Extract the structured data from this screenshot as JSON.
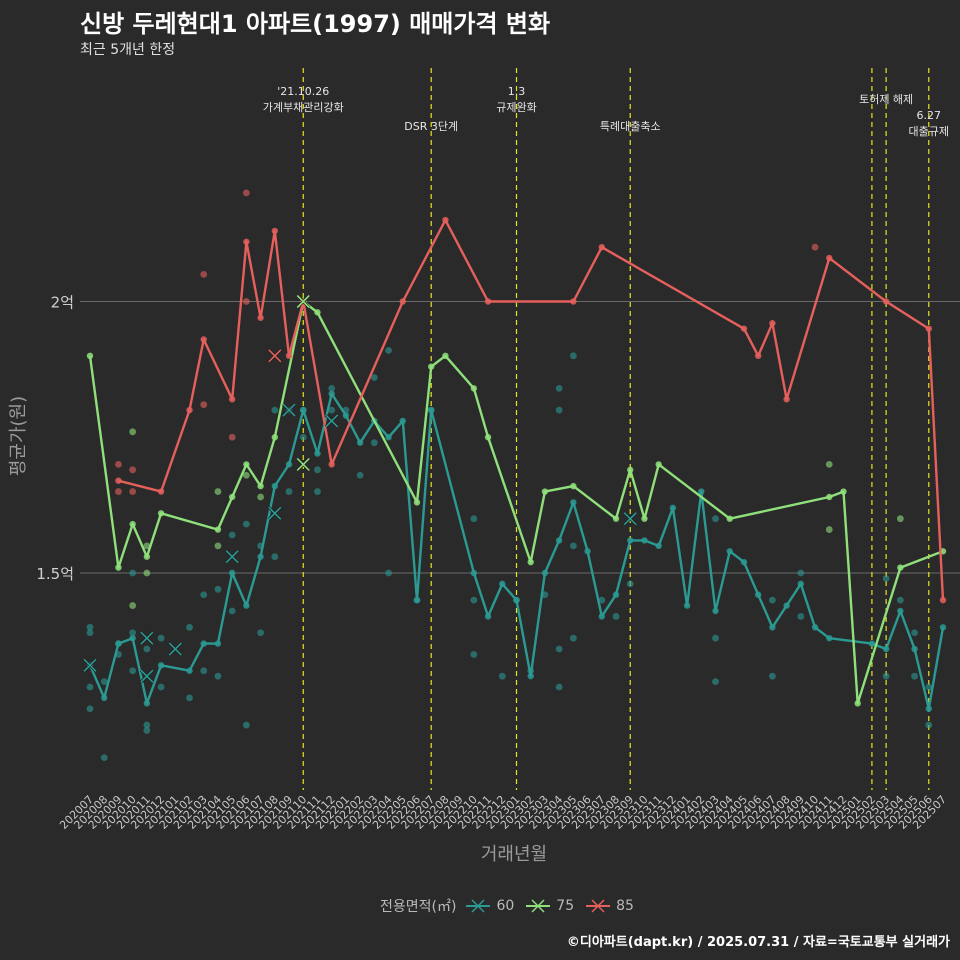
{
  "header": {
    "title": "신방 두레현대1 아파트(1997) 매매가격 변화",
    "subtitle": "최근 5개년 한정"
  },
  "caption": "©디아파트(dapt.kr) / 2025.07.31 / 자료=국토교통부 실거래가",
  "colors": {
    "s60": "#2a9a93",
    "s75": "#8fe07b",
    "s85": "#e5605c",
    "vline": "#e5e51f",
    "background": "#2b2a2b",
    "grid": "#6a6a6a"
  },
  "chart_data": {
    "type": "line",
    "xlabel": "거래년월",
    "ylabel": "평균가(원)",
    "legend_title": "전용면적(㎡)",
    "legend_position": "bottom",
    "categories": [
      "202007",
      "202008",
      "202009",
      "202010",
      "202011",
      "202012",
      "202101",
      "202102",
      "202103",
      "202104",
      "202105",
      "202106",
      "202107",
      "202108",
      "202109",
      "202110",
      "202111",
      "202112",
      "202201",
      "202202",
      "202203",
      "202204",
      "202205",
      "202206",
      "202207",
      "202208",
      "202209",
      "202210",
      "202211",
      "202212",
      "202301",
      "202302",
      "202303",
      "202304",
      "202305",
      "202306",
      "202307",
      "202308",
      "202309",
      "202310",
      "202311",
      "202312",
      "202401",
      "202402",
      "202403",
      "202404",
      "202405",
      "202406",
      "202407",
      "202408",
      "202409",
      "202410",
      "202411",
      "202412",
      "202501",
      "202502",
      "202503",
      "202504",
      "202505",
      "202506",
      "202507"
    ],
    "ylim": [
      1.1,
      2.2
    ],
    "y_ticks": [
      {
        "value": 1.5,
        "label": "1.5억"
      },
      {
        "value": 2.0,
        "label": "2억"
      }
    ],
    "series": [
      {
        "name": "60",
        "color_key": "s60",
        "values": [
          1.33,
          1.27,
          1.37,
          1.38,
          1.26,
          1.33,
          null,
          1.32,
          1.37,
          1.37,
          1.5,
          1.44,
          1.53,
          1.66,
          1.7,
          1.8,
          1.72,
          1.83,
          1.79,
          1.74,
          1.78,
          1.75,
          1.78,
          1.45,
          1.8,
          null,
          null,
          1.5,
          1.42,
          1.48,
          1.45,
          1.31,
          1.5,
          1.56,
          1.63,
          1.54,
          1.42,
          1.46,
          1.56,
          1.56,
          1.55,
          1.62,
          1.44,
          1.65,
          1.43,
          1.54,
          1.52,
          1.46,
          1.4,
          1.44,
          1.48,
          1.4,
          1.38,
          null,
          null,
          1.37,
          1.36,
          1.43,
          1.36,
          1.25,
          1.4
        ]
      },
      {
        "name": "75",
        "color_key": "s75",
        "values": [
          1.9,
          null,
          1.51,
          1.59,
          1.53,
          1.61,
          null,
          null,
          null,
          1.58,
          1.64,
          1.7,
          1.66,
          1.75,
          null,
          2.0,
          1.98,
          null,
          null,
          null,
          null,
          null,
          null,
          1.63,
          1.88,
          1.9,
          null,
          1.84,
          1.75,
          null,
          null,
          1.52,
          1.65,
          null,
          1.66,
          null,
          null,
          1.6,
          1.69,
          1.6,
          1.7,
          null,
          null,
          null,
          null,
          1.6,
          null,
          null,
          null,
          null,
          null,
          null,
          1.64,
          1.65,
          1.26,
          null,
          null,
          1.51,
          null,
          null,
          1.54
        ]
      },
      {
        "name": "85",
        "color_key": "s85",
        "values": [
          null,
          null,
          1.67,
          null,
          null,
          1.65,
          null,
          1.8,
          1.93,
          null,
          1.82,
          2.11,
          1.97,
          2.13,
          1.9,
          2.0,
          null,
          1.7,
          null,
          null,
          null,
          null,
          2.0,
          null,
          null,
          2.15,
          null,
          null,
          2.0,
          null,
          null,
          null,
          null,
          null,
          2.0,
          null,
          2.1,
          null,
          null,
          null,
          null,
          null,
          null,
          null,
          null,
          null,
          1.95,
          1.9,
          1.96,
          1.82,
          null,
          null,
          2.08,
          null,
          null,
          null,
          2.0,
          null,
          null,
          1.95,
          1.45
        ]
      }
    ],
    "points": [
      {
        "series": "60",
        "x": "202007",
        "y": 1.25
      },
      {
        "series": "60",
        "x": "202007",
        "y": 1.29
      },
      {
        "series": "60",
        "x": "202007",
        "y": 1.4
      },
      {
        "series": "60",
        "x": "202007",
        "y": 1.39
      },
      {
        "series": "60",
        "x": "202008",
        "y": 1.3
      },
      {
        "series": "60",
        "x": "202008",
        "y": 1.16
      },
      {
        "series": "60",
        "x": "202009",
        "y": 1.37
      },
      {
        "series": "60",
        "x": "202009",
        "y": 1.35
      },
      {
        "series": "60",
        "x": "202010",
        "y": 1.39
      },
      {
        "series": "60",
        "x": "202010",
        "y": 1.32
      },
      {
        "series": "60",
        "x": "202010",
        "y": 1.5
      },
      {
        "series": "60",
        "x": "202011",
        "y": 1.22
      },
      {
        "series": "60",
        "x": "202011",
        "y": 1.21
      },
      {
        "series": "60",
        "x": "202011",
        "y": 1.36
      },
      {
        "series": "60",
        "x": "202012",
        "y": 1.29
      },
      {
        "series": "60",
        "x": "202012",
        "y": 1.38
      },
      {
        "series": "60",
        "x": "202102",
        "y": 1.27
      },
      {
        "series": "60",
        "x": "202102",
        "y": 1.4
      },
      {
        "series": "60",
        "x": "202103",
        "y": 1.32
      },
      {
        "series": "60",
        "x": "202103",
        "y": 1.46
      },
      {
        "series": "60",
        "x": "202104",
        "y": 1.31
      },
      {
        "series": "60",
        "x": "202104",
        "y": 1.47
      },
      {
        "series": "60",
        "x": "202105",
        "y": 1.43
      },
      {
        "series": "60",
        "x": "202105",
        "y": 1.57
      },
      {
        "series": "60",
        "x": "202106",
        "y": 1.22
      },
      {
        "series": "60",
        "x": "202106",
        "y": 1.59
      },
      {
        "series": "60",
        "x": "202107",
        "y": 1.39
      },
      {
        "series": "60",
        "x": "202107",
        "y": 1.55
      },
      {
        "series": "60",
        "x": "202108",
        "y": 1.53
      },
      {
        "series": "60",
        "x": "202108",
        "y": 1.8
      },
      {
        "series": "60",
        "x": "202109",
        "y": 1.65
      },
      {
        "series": "60",
        "x": "202109",
        "y": 1.8
      },
      {
        "series": "60",
        "x": "202110",
        "y": 1.75
      },
      {
        "series": "60",
        "x": "202110",
        "y": 1.8
      },
      {
        "series": "60",
        "x": "202111",
        "y": 1.69
      },
      {
        "series": "60",
        "x": "202111",
        "y": 1.65
      },
      {
        "series": "60",
        "x": "202112",
        "y": 1.84
      },
      {
        "series": "60",
        "x": "202112",
        "y": 1.8
      },
      {
        "series": "60",
        "x": "202201",
        "y": 1.8
      },
      {
        "series": "60",
        "x": "202202",
        "y": 1.68
      },
      {
        "series": "60",
        "x": "202203",
        "y": 1.86
      },
      {
        "series": "60",
        "x": "202203",
        "y": 1.74
      },
      {
        "series": "60",
        "x": "202204",
        "y": 1.91
      },
      {
        "series": "60",
        "x": "202204",
        "y": 1.5
      },
      {
        "series": "60",
        "x": "202206",
        "y": 1.45
      },
      {
        "series": "60",
        "x": "202207",
        "y": 1.8
      },
      {
        "series": "60",
        "x": "202210",
        "y": 1.45
      },
      {
        "series": "60",
        "x": "202210",
        "y": 1.6
      },
      {
        "series": "60",
        "x": "202210",
        "y": 1.35
      },
      {
        "series": "60",
        "x": "202212",
        "y": 1.31
      },
      {
        "series": "60",
        "x": "202301",
        "y": 1.45
      },
      {
        "series": "60",
        "x": "202302",
        "y": 1.32
      },
      {
        "series": "60",
        "x": "202303",
        "y": 1.46
      },
      {
        "series": "60",
        "x": "202304",
        "y": 1.84
      },
      {
        "series": "60",
        "x": "202304",
        "y": 1.8
      },
      {
        "series": "60",
        "x": "202304",
        "y": 1.29
      },
      {
        "series": "60",
        "x": "202304",
        "y": 1.36
      },
      {
        "series": "60",
        "x": "202305",
        "y": 1.9
      },
      {
        "series": "60",
        "x": "202305",
        "y": 1.55
      },
      {
        "series": "60",
        "x": "202305",
        "y": 1.38
      },
      {
        "series": "60",
        "x": "202307",
        "y": 1.45
      },
      {
        "series": "60",
        "x": "202308",
        "y": 1.42
      },
      {
        "series": "60",
        "x": "202309",
        "y": 1.48
      },
      {
        "series": "60",
        "x": "202403",
        "y": 1.38
      },
      {
        "series": "60",
        "x": "202403",
        "y": 1.3
      },
      {
        "series": "60",
        "x": "202403",
        "y": 1.6
      },
      {
        "series": "60",
        "x": "202407",
        "y": 1.31
      },
      {
        "series": "60",
        "x": "202407",
        "y": 1.45
      },
      {
        "series": "60",
        "x": "202409",
        "y": 1.42
      },
      {
        "series": "60",
        "x": "202409",
        "y": 1.5
      },
      {
        "series": "60",
        "x": "202503",
        "y": 1.49
      },
      {
        "series": "60",
        "x": "202503",
        "y": 1.31
      },
      {
        "series": "60",
        "x": "202504",
        "y": 1.45
      },
      {
        "series": "60",
        "x": "202505",
        "y": 1.39
      },
      {
        "series": "60",
        "x": "202505",
        "y": 1.31
      },
      {
        "series": "60",
        "x": "202506",
        "y": 1.22
      },
      {
        "series": "60",
        "x": "202506",
        "y": 1.29
      },
      {
        "series": "75",
        "x": "202010",
        "y": 1.76
      },
      {
        "series": "75",
        "x": "202010",
        "y": 1.44
      },
      {
        "series": "75",
        "x": "202011",
        "y": 1.55
      },
      {
        "series": "75",
        "x": "202011",
        "y": 1.5
      },
      {
        "series": "75",
        "x": "202104",
        "y": 1.55
      },
      {
        "series": "75",
        "x": "202104",
        "y": 1.65
      },
      {
        "series": "75",
        "x": "202106",
        "y": 1.68
      },
      {
        "series": "75",
        "x": "202107",
        "y": 1.64
      },
      {
        "series": "75",
        "x": "202411",
        "y": 1.58
      },
      {
        "series": "75",
        "x": "202411",
        "y": 1.7
      },
      {
        "series": "75",
        "x": "202504",
        "y": 1.6
      },
      {
        "series": "85",
        "x": "202009",
        "y": 1.7
      },
      {
        "series": "85",
        "x": "202009",
        "y": 1.65
      },
      {
        "series": "85",
        "x": "202010",
        "y": 1.69
      },
      {
        "series": "85",
        "x": "202010",
        "y": 1.65
      },
      {
        "series": "85",
        "x": "202103",
        "y": 2.05
      },
      {
        "series": "85",
        "x": "202103",
        "y": 1.81
      },
      {
        "series": "85",
        "x": "202105",
        "y": 1.75
      },
      {
        "series": "85",
        "x": "202106",
        "y": 2.2
      },
      {
        "series": "85",
        "x": "202106",
        "y": 2.0
      },
      {
        "series": "85",
        "x": "202410",
        "y": 2.1
      }
    ],
    "cancelled_points": [
      {
        "series": "60",
        "x": "202007",
        "y": 1.33
      },
      {
        "series": "60",
        "x": "202011",
        "y": 1.38
      },
      {
        "series": "60",
        "x": "202011",
        "y": 1.31
      },
      {
        "series": "60",
        "x": "202101",
        "y": 1.36
      },
      {
        "series": "60",
        "x": "202105",
        "y": 1.53
      },
      {
        "series": "60",
        "x": "202108",
        "y": 1.61
      },
      {
        "series": "60",
        "x": "202109",
        "y": 1.8
      },
      {
        "series": "60",
        "x": "202112",
        "y": 1.78
      },
      {
        "series": "60",
        "x": "202309",
        "y": 1.6
      },
      {
        "series": "75",
        "x": "202110",
        "y": 2.0
      },
      {
        "series": "75",
        "x": "202110",
        "y": 1.7
      },
      {
        "series": "85",
        "x": "202108",
        "y": 1.9
      }
    ],
    "events": [
      {
        "x": "202110",
        "label": "'21.10.26\n가계부채관리강화"
      },
      {
        "x": "202207",
        "label": "DSR 3단계"
      },
      {
        "x": "202301",
        "label": "1.3\n규제완화"
      },
      {
        "x": "202309",
        "label": "특례대출축소"
      },
      {
        "x": "202502",
        "label": ""
      },
      {
        "x": "202503",
        "label": "토허제 해제"
      },
      {
        "x": "202506",
        "label": "6.27\n대출규제"
      }
    ]
  }
}
